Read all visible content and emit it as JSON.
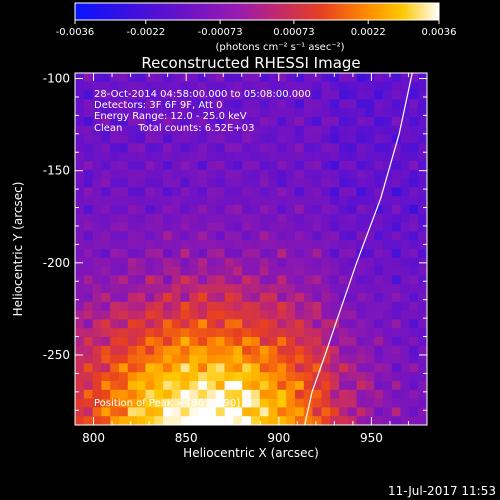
{
  "chart_data": {
    "type": "heatmap",
    "title": "Reconstructed RHESSI Image",
    "xlabel": "Heliocentric X (arcsec)",
    "ylabel": "Heliocentric Y (arcsec)",
    "xlim": [
      790,
      980
    ],
    "ylim": [
      -288,
      -97
    ],
    "x_ticks": [
      800,
      850,
      900,
      950
    ],
    "y_ticks": [
      -100,
      -150,
      -200,
      -250
    ],
    "colorbar": {
      "min": -0.0036,
      "max": 0.0036,
      "ticks": [
        "-0.0036",
        "-0.0022",
        "-0.00073",
        "0.00073",
        "0.0022",
        "0.0036"
      ],
      "unit_label": "(photons cm⁻² s⁻¹ asec⁻²)",
      "colors": [
        "#0a14ff",
        "#5a10d0",
        "#9018c0",
        "#c02890",
        "#e83a20",
        "#ff7a00",
        "#ffc200",
        "#ffffff"
      ]
    },
    "annotations": [
      "28-Oct-2014 04:58:00.000 to 05:08:00.000",
      "Detectors: 3F 6F 9F, Att 0",
      "Energy Range: 12.0 - 25.0 keV",
      "Clean     Total counts: 6.52E+03"
    ],
    "peak_label": "Position of Peak = [861,-290]",
    "peak": [
      861,
      -290
    ],
    "limb_curve": [
      [
        972,
        -97
      ],
      [
        965,
        -130
      ],
      [
        955,
        -165
      ],
      [
        942,
        -200
      ],
      [
        930,
        -235
      ],
      [
        925,
        -250
      ],
      [
        918,
        -270
      ],
      [
        914,
        -288
      ]
    ]
  },
  "footer": {
    "timestamp": "11-Jul-2017 11:53"
  }
}
